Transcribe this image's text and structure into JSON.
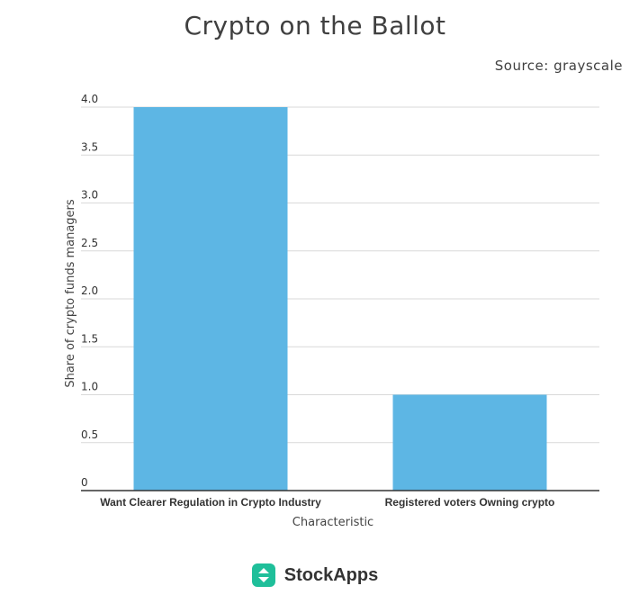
{
  "header": {
    "title": "Crypto on the Ballot",
    "source": "Source: grayscale"
  },
  "footer": {
    "brand_name": "StockApps",
    "brand_icon": "up-down-arrows-icon",
    "brand_color": "#1fbf9a"
  },
  "chart_data": {
    "type": "bar",
    "title": "Crypto on the Ballot",
    "categories": [
      "Want Clearer Regulation in Crypto Industry",
      "Registered voters Owning crypto"
    ],
    "values": [
      4.0,
      1.0
    ],
    "xlabel": "Characteristic",
    "ylabel": "Share of crypto funds managers",
    "ylim": [
      0,
      4.0
    ],
    "yticks": [
      {
        "value": 0,
        "label": "0"
      },
      {
        "value": 0.5,
        "label": "0.5"
      },
      {
        "value": 1.0,
        "label": "1.0"
      },
      {
        "value": 1.5,
        "label": "1.5"
      },
      {
        "value": 2.0,
        "label": "2.0"
      },
      {
        "value": 2.5,
        "label": "2.5"
      },
      {
        "value": 3.0,
        "label": "3.0"
      },
      {
        "value": 3.5,
        "label": "3.5"
      },
      {
        "value": 4.0,
        "label": "4.0"
      }
    ],
    "bar_color": "#5db6e4",
    "grid": true
  }
}
